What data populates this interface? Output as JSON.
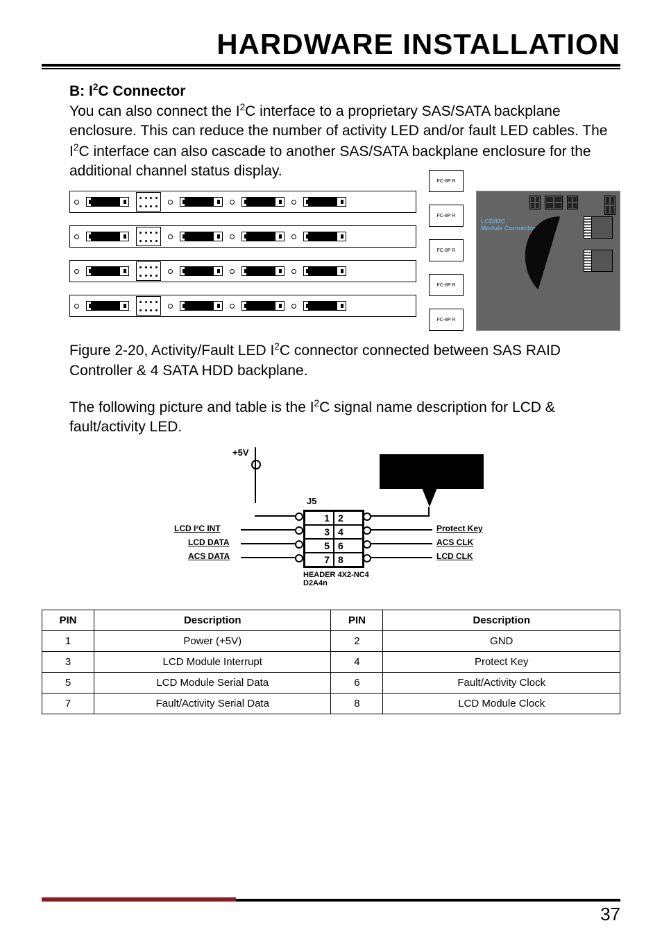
{
  "page": {
    "title": "HARDWARE INSTALLATION",
    "number": "37"
  },
  "section": {
    "heading_prefix": "B: I",
    "heading_sup": "2",
    "heading_suffix": "C Connector",
    "body_html": "You can also connect the I<span class='sup'>2</span>C interface to a proprietary SAS/SATA backplane enclosure. This can reduce the number of activity LED and/or fault LED cables. The I<span class='sup'>2</span>C interface can also cascade to another SAS/SATA backplane enclosure for the additional channel status display."
  },
  "figure1": {
    "caption_html": "Figure 2-20, Activity/Fault LED I<span class='sup'>2</span>C connector connected between SAS RAID Controller & 4 SATA HDD backplane.",
    "side_labels": [
      "FC-8P R",
      "FC-8P R",
      "FC-8P R",
      "FC-8P R",
      "FC-8P R"
    ],
    "card_label": "LCD/I2C\nModule Connector"
  },
  "paragraph2_html": "The following picture and table is the I<span class='sup'>2</span>C signal name description for LCD & fault/activity LED.",
  "figure2": {
    "fiveV": "+5V",
    "j5": "J5",
    "header_label": "HEADER 4X2-NC4\nD2A4n",
    "pins": [
      {
        "l": "1",
        "r": "2"
      },
      {
        "l": "3",
        "r": "4"
      },
      {
        "l": "5",
        "r": "6"
      },
      {
        "l": "7",
        "r": "8"
      }
    ],
    "left_signals": [
      "LCD I²C INT",
      "LCD DATA",
      "ACS DATA"
    ],
    "right_signals": [
      "Protect Key",
      "ACS CLK",
      "LCD CLK"
    ]
  },
  "table": {
    "headers": [
      "PIN",
      "Description",
      "PIN",
      "Description"
    ],
    "rows": [
      [
        "1",
        "Power (+5V)",
        "2",
        "GND"
      ],
      [
        "3",
        "LCD Module Interrupt",
        "4",
        "Protect Key"
      ],
      [
        "5",
        "LCD Module Serial Data",
        "6",
        "Fault/Activity Clock"
      ],
      [
        "7",
        "Fault/Activity Serial Data",
        "8",
        "LCD Module Clock"
      ]
    ]
  },
  "colors": {
    "accent": "#8a1d23",
    "card_bg": "#646464",
    "lcd_text": "#6fa8c7"
  }
}
